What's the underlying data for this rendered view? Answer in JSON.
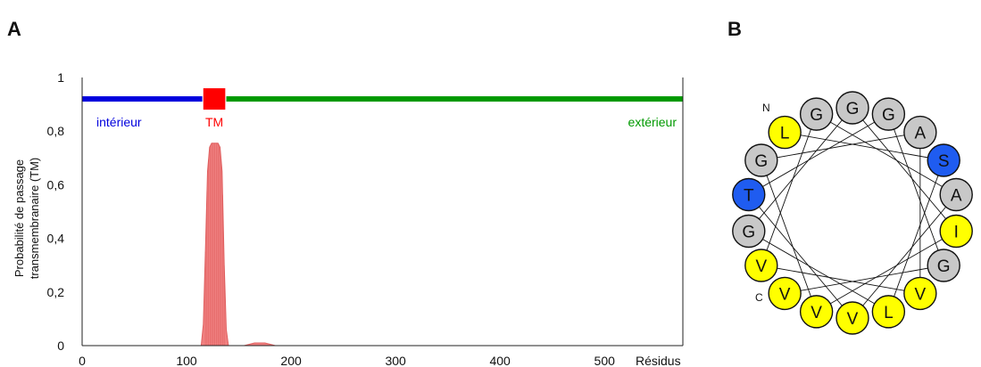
{
  "panels": {
    "a_letter": "A",
    "b_letter": "B"
  },
  "colors": {
    "inside": "#0000dd",
    "tm": "#ff0000",
    "outside": "#009900",
    "peak": "#f08080",
    "hydrophobic": "#ffff00",
    "polar": "#1f5cf0",
    "neutral": "#c8c8c8"
  },
  "chart_data": [
    {
      "type": "area",
      "title": "",
      "ylabel_line1": "Probabilité de passage",
      "ylabel_line2": "transmembranaire (TM)",
      "xlabel": "Résidus",
      "xlim": [
        0,
        575
      ],
      "ylim": [
        0,
        1
      ],
      "x_ticks": [
        "0",
        "100",
        "200",
        "300",
        "400",
        "500"
      ],
      "y_ticks": [
        "0",
        "0,2",
        "0,4",
        "0,6",
        "0,8",
        "1"
      ],
      "grid": false,
      "topology": {
        "y": 0.92,
        "segments": [
          {
            "label": "intérieur",
            "start": 1,
            "end": 115,
            "kind": "inside"
          },
          {
            "label": "TM",
            "start": 116,
            "end": 137,
            "kind": "tm"
          },
          {
            "label": "extérieur",
            "start": 138,
            "end": 575,
            "kind": "outside"
          }
        ]
      },
      "series": [
        {
          "x": [
            114,
            116,
            118,
            120,
            122,
            124,
            126,
            128,
            130,
            132,
            134,
            136,
            138,
            140,
            142,
            145,
            150,
            155,
            160,
            165,
            170,
            175,
            180,
            185,
            190
          ],
          "values": [
            0,
            0.08,
            0.35,
            0.65,
            0.74,
            0.755,
            0.755,
            0.755,
            0.755,
            0.74,
            0.65,
            0.3,
            0.06,
            0,
            0,
            0,
            0,
            0,
            0.005,
            0.01,
            0.01,
            0.01,
            0.005,
            0,
            0
          ]
        }
      ]
    },
    {
      "type": "helical-wheel",
      "n_label": "N",
      "c_label": "C",
      "residues": [
        {
          "label": "L",
          "kind": "hydrophobic"
        },
        {
          "label": "G",
          "kind": "neutral"
        },
        {
          "label": "G",
          "kind": "neutral"
        },
        {
          "label": "G",
          "kind": "neutral"
        },
        {
          "label": "A",
          "kind": "neutral"
        },
        {
          "label": "S",
          "kind": "polar"
        },
        {
          "label": "A",
          "kind": "neutral"
        },
        {
          "label": "I",
          "kind": "hydrophobic"
        },
        {
          "label": "G",
          "kind": "neutral"
        },
        {
          "label": "V",
          "kind": "hydrophobic"
        },
        {
          "label": "L",
          "kind": "hydrophobic"
        },
        {
          "label": "V",
          "kind": "hydrophobic"
        },
        {
          "label": "V",
          "kind": "hydrophobic"
        },
        {
          "label": "V",
          "kind": "hydrophobic"
        },
        {
          "label": "V",
          "kind": "hydrophobic"
        },
        {
          "label": "G",
          "kind": "neutral"
        },
        {
          "label": "T",
          "kind": "polar"
        },
        {
          "label": "G",
          "kind": "neutral"
        }
      ]
    }
  ]
}
